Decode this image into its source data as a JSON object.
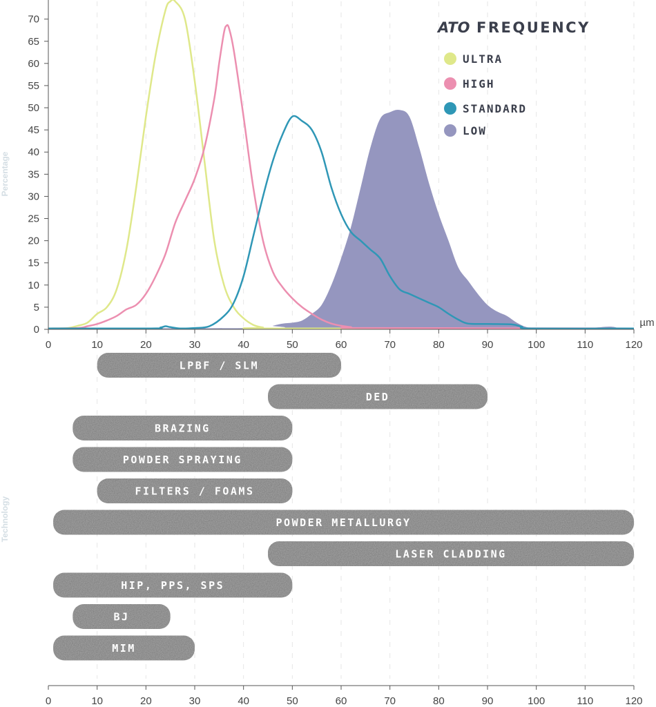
{
  "chart_data": [
    {
      "type": "line",
      "title": "FREQUENCY",
      "brand": "ATO",
      "xlabel": "µm",
      "ylabel": "Percentage",
      "xlim": [
        0,
        120
      ],
      "ylim": [
        0,
        74
      ],
      "xticks": [
        0,
        10,
        20,
        30,
        40,
        50,
        60,
        70,
        80,
        90,
        100,
        110,
        120
      ],
      "yticks": [
        0,
        5,
        10,
        15,
        20,
        25,
        30,
        35,
        40,
        45,
        50,
        55,
        60,
        65,
        70
      ],
      "legend_position": "top-right",
      "series": [
        {
          "name": "ULTRA",
          "color": "#dfe88a",
          "fill": false,
          "points": [
            [
              0,
              0.2
            ],
            [
              4,
              0.3
            ],
            [
              6,
              0.8
            ],
            [
              8,
              1.5
            ],
            [
              10,
              3.5
            ],
            [
              12,
              5
            ],
            [
              14,
              9
            ],
            [
              16,
              18
            ],
            [
              18,
              32
            ],
            [
              20,
              48
            ],
            [
              22,
              62
            ],
            [
              24,
              72
            ],
            [
              25,
              74
            ],
            [
              26,
              74
            ],
            [
              28,
              70
            ],
            [
              30,
              56
            ],
            [
              32,
              38
            ],
            [
              34,
              20
            ],
            [
              36,
              10
            ],
            [
              38,
              5
            ],
            [
              40,
              2.5
            ],
            [
              42,
              1
            ],
            [
              44,
              0.4
            ],
            [
              46,
              0.2
            ],
            [
              120,
              0.2
            ]
          ]
        },
        {
          "name": "HIGH",
          "color": "#ec8fb0",
          "fill": false,
          "points": [
            [
              0,
              0.2
            ],
            [
              6,
              0.3
            ],
            [
              8,
              0.7
            ],
            [
              10,
              1.2
            ],
            [
              12,
              2
            ],
            [
              14,
              3
            ],
            [
              16,
              4.5
            ],
            [
              18,
              5.5
            ],
            [
              20,
              8
            ],
            [
              22,
              12
            ],
            [
              24,
              17
            ],
            [
              26,
              24
            ],
            [
              28,
              29
            ],
            [
              30,
              34
            ],
            [
              32,
              41
            ],
            [
              34,
              52
            ],
            [
              35,
              60
            ],
            [
              36,
              67
            ],
            [
              36.5,
              68.5
            ],
            [
              37,
              68
            ],
            [
              38,
              63
            ],
            [
              40,
              48
            ],
            [
              42,
              32
            ],
            [
              44,
              20
            ],
            [
              46,
              13
            ],
            [
              48,
              9.5
            ],
            [
              50,
              7
            ],
            [
              52,
              5
            ],
            [
              54,
              3.5
            ],
            [
              56,
              2.2
            ],
            [
              58,
              1.3
            ],
            [
              60,
              0.8
            ],
            [
              62,
              0.5
            ],
            [
              65,
              0.3
            ],
            [
              120,
              0.2
            ]
          ]
        },
        {
          "name": "STANDARD",
          "color": "#2f97b6",
          "fill": false,
          "points": [
            [
              0,
              0.2
            ],
            [
              21,
              0.2
            ],
            [
              23,
              0.4
            ],
            [
              24,
              0.7
            ],
            [
              25,
              0.5
            ],
            [
              27,
              0.2
            ],
            [
              30,
              0.3
            ],
            [
              33,
              0.7
            ],
            [
              36,
              3
            ],
            [
              38,
              6
            ],
            [
              40,
              12
            ],
            [
              42,
              21
            ],
            [
              44,
              30
            ],
            [
              46,
              38
            ],
            [
              48,
              44
            ],
            [
              50,
              48
            ],
            [
              52,
              47
            ],
            [
              54,
              45
            ],
            [
              56,
              40
            ],
            [
              58,
              32
            ],
            [
              60,
              26
            ],
            [
              62,
              22
            ],
            [
              64,
              20
            ],
            [
              66,
              18
            ],
            [
              68,
              16
            ],
            [
              70,
              12
            ],
            [
              72,
              9
            ],
            [
              74,
              8
            ],
            [
              76,
              7
            ],
            [
              78,
              6
            ],
            [
              80,
              5
            ],
            [
              82,
              3.5
            ],
            [
              84,
              2.2
            ],
            [
              86,
              1.3
            ],
            [
              90,
              1.2
            ],
            [
              95,
              1.1
            ],
            [
              97,
              0.6
            ],
            [
              99,
              0.2
            ],
            [
              120,
              0.2
            ]
          ]
        },
        {
          "name": "LOW",
          "color": "#9596bf",
          "fill": true,
          "points": [
            [
              0,
              0.2
            ],
            [
              45,
              0.3
            ],
            [
              46,
              0.8
            ],
            [
              48,
              1.3
            ],
            [
              50,
              1.5
            ],
            [
              52,
              2
            ],
            [
              54,
              3.5
            ],
            [
              56,
              5.5
            ],
            [
              58,
              10
            ],
            [
              60,
              16
            ],
            [
              62,
              23
            ],
            [
              64,
              32
            ],
            [
              66,
              41
            ],
            [
              68,
              47.5
            ],
            [
              70,
              49
            ],
            [
              72,
              49.5
            ],
            [
              74,
              48
            ],
            [
              76,
              41
            ],
            [
              78,
              33
            ],
            [
              80,
              26
            ],
            [
              82,
              20
            ],
            [
              84,
              14
            ],
            [
              86,
              11
            ],
            [
              88,
              8
            ],
            [
              90,
              5.5
            ],
            [
              92,
              4
            ],
            [
              94,
              3
            ],
            [
              96,
              1.5
            ],
            [
              98,
              0.5
            ],
            [
              100,
              0.3
            ],
            [
              110,
              0.3
            ],
            [
              115,
              0.6
            ],
            [
              117,
              0.3
            ],
            [
              120,
              0.2
            ]
          ]
        }
      ]
    },
    {
      "type": "bar",
      "orientation": "horizontal-range",
      "ylabel": "Technology",
      "xlim": [
        0,
        120
      ],
      "xticks": [
        0,
        10,
        20,
        30,
        40,
        50,
        60,
        70,
        80,
        90,
        100,
        110,
        120
      ],
      "bar_color": "#727272",
      "bars": [
        {
          "label": "LPBF / SLM",
          "start": 10,
          "end": 60
        },
        {
          "label": "DED",
          "start": 45,
          "end": 90
        },
        {
          "label": "BRAZING",
          "start": 5,
          "end": 50
        },
        {
          "label": "POWDER SPRAYING",
          "start": 5,
          "end": 50
        },
        {
          "label": "FILTERS / FOAMS",
          "start": 10,
          "end": 50
        },
        {
          "label": "POWDER METALLURGY",
          "start": 1,
          "end": 120
        },
        {
          "label": "LASER CLADDING",
          "start": 45,
          "end": 120
        },
        {
          "label": "HIP, PPS, SPS",
          "start": 1,
          "end": 50
        },
        {
          "label": "BJ",
          "start": 5,
          "end": 25
        },
        {
          "label": "MIM",
          "start": 1,
          "end": 30
        }
      ]
    }
  ]
}
